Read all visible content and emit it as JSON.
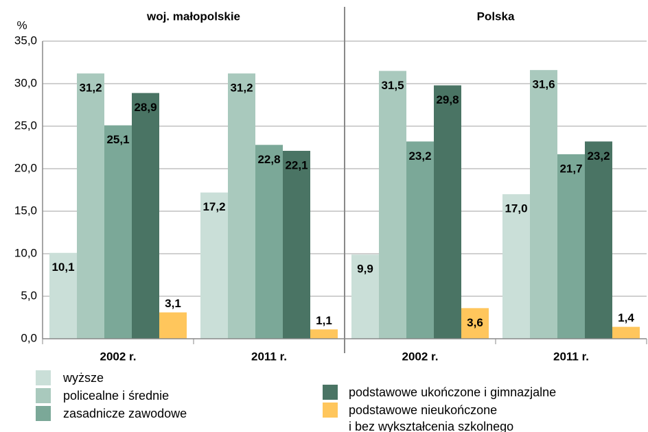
{
  "chart_data": {
    "type": "bar",
    "groups": [
      "woj. małopolskie",
      "Polska"
    ],
    "categories": [
      "2002 r.",
      "2011 r.",
      "2002 r.",
      "2011 r."
    ],
    "y_axis_label": "%",
    "series": [
      {
        "name": "wyższe",
        "color": "#cadfd8",
        "values": [
          10.1,
          17.2,
          9.9,
          17.0
        ],
        "value_labels": [
          "10,1",
          "17,2",
          "9,9",
          "17,0"
        ]
      },
      {
        "name": "policealne i średnie",
        "color": "#a9c9bd",
        "values": [
          31.2,
          31.2,
          31.5,
          31.6
        ],
        "value_labels": [
          "31,2",
          "31,2",
          "31,5",
          "31,6"
        ]
      },
      {
        "name": "zasadnicze zawodowe",
        "color": "#7ba898",
        "values": [
          25.1,
          22.8,
          23.2,
          21.7
        ],
        "value_labels": [
          "25,1",
          "22,8",
          "23,2",
          "21,7"
        ]
      },
      {
        "name": "podstawowe ukończone i gimnazjalne",
        "color": "#4a7464",
        "values": [
          28.9,
          22.1,
          29.8,
          23.2
        ],
        "value_labels": [
          "28,9",
          "22,1",
          "29,8",
          "23,2"
        ]
      },
      {
        "name": "podstawowe nieukończone\ni bez wykształcenia szkolnego",
        "color": "#ffc65c",
        "values": [
          3.1,
          1.1,
          3.6,
          1.4
        ],
        "value_labels": [
          "3,1",
          "1,1",
          "3,6",
          "1,4"
        ]
      }
    ],
    "ylim": [
      0,
      35
    ],
    "yticks": [
      {
        "value": 0,
        "label": "0,0"
      },
      {
        "value": 5,
        "label": "5,0"
      },
      {
        "value": 10,
        "label": "10,0"
      },
      {
        "value": 15,
        "label": "15,0"
      },
      {
        "value": 20,
        "label": "20,0"
      },
      {
        "value": 25,
        "label": "25,0"
      },
      {
        "value": 30,
        "label": "30,0"
      },
      {
        "value": 35,
        "label": "35,0"
      }
    ],
    "grid": true
  }
}
